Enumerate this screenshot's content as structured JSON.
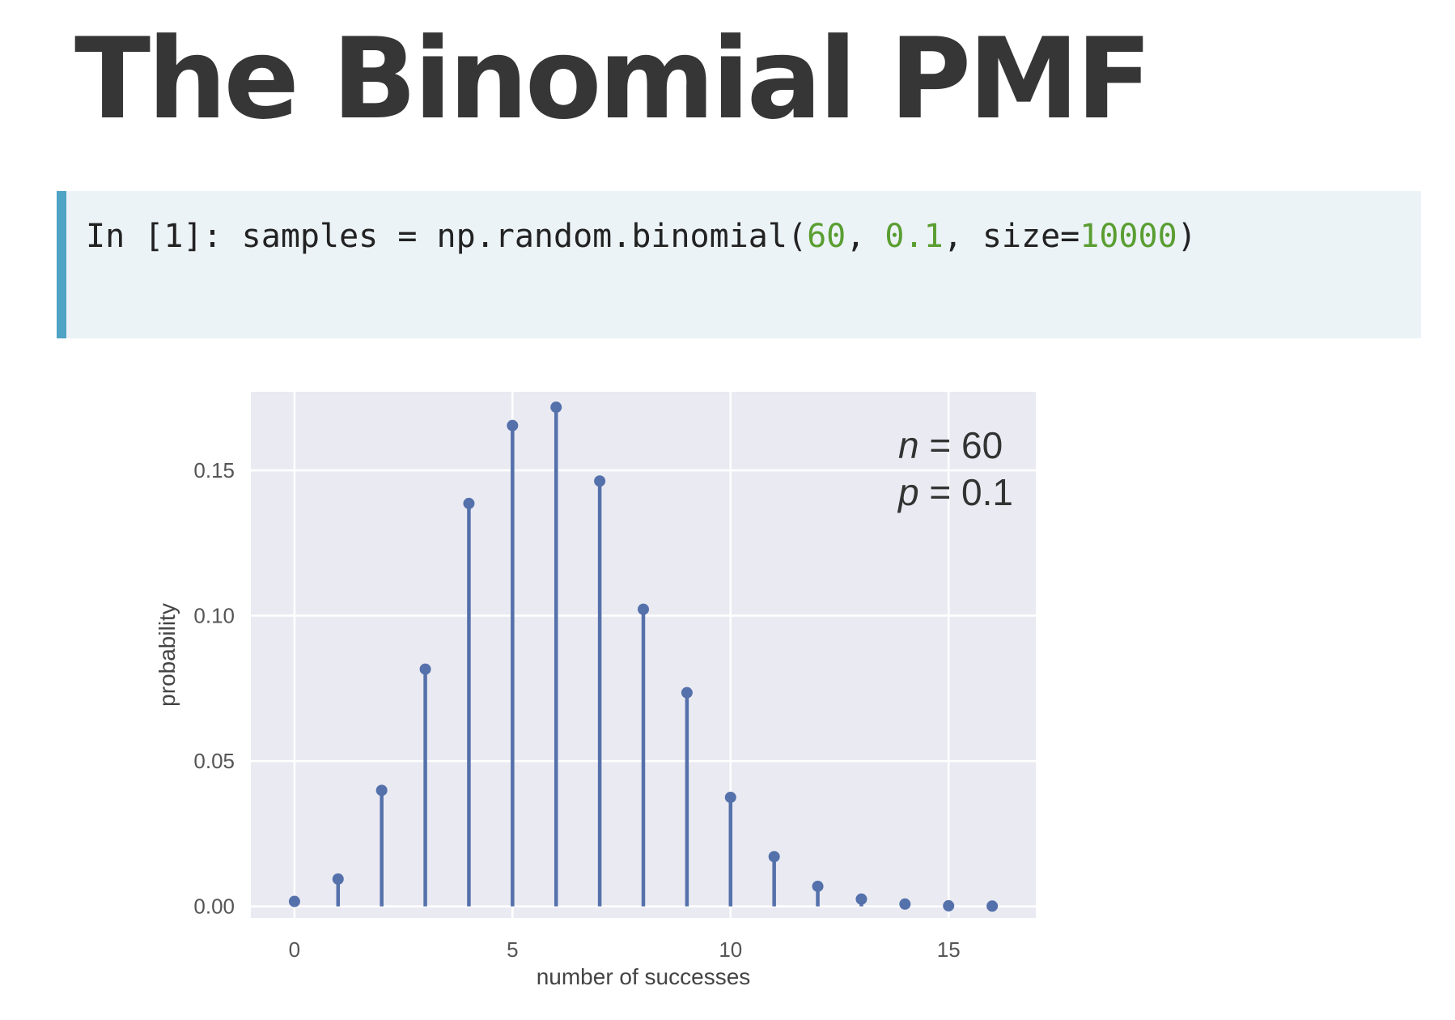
{
  "slide": {
    "title": "The Binomial PMF"
  },
  "code": {
    "prompt": "In [1]:",
    "before": "samples = np.random.binomial(",
    "arg1": "60",
    "sep1": ", ",
    "arg2": "0.1",
    "sep2": ", size=",
    "arg3": "10000",
    "after": ")"
  },
  "colors": {
    "stem": "#5471ab",
    "plot_bg": "#eaeaf2",
    "grid": "#ffffff",
    "code_bg": "#ecf3f7",
    "code_accent": "#4fa3c4",
    "number": "#5a9e32"
  },
  "chart_data": {
    "type": "stem",
    "title": "",
    "xlabel": "number of successes",
    "ylabel": "probability",
    "xlim": [
      -1,
      17
    ],
    "ylim": [
      -0.004,
      0.177
    ],
    "xticks": [
      0,
      5,
      10,
      15
    ],
    "yticks": [
      0.0,
      0.05,
      0.1,
      0.15
    ],
    "ytick_labels": [
      "0.00",
      "0.05",
      "0.10",
      "0.15"
    ],
    "grid": true,
    "x": [
      0,
      1,
      2,
      3,
      4,
      5,
      6,
      7,
      8,
      9,
      10,
      11,
      12,
      13,
      14,
      15,
      16
    ],
    "values": [
      0.0017,
      0.0094,
      0.0399,
      0.0816,
      0.1386,
      0.1654,
      0.1717,
      0.1463,
      0.1022,
      0.0735,
      0.0375,
      0.0171,
      0.0069,
      0.0025,
      0.0008,
      0.0002,
      0.0001
    ],
    "annotations": [
      {
        "var": "n",
        "eq": " = ",
        "val": "60"
      },
      {
        "var": "p",
        "eq": " = ",
        "val": "0.1"
      }
    ]
  }
}
